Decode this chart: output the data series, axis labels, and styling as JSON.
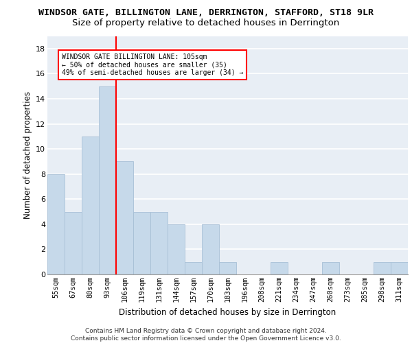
{
  "title1": "WINDSOR GATE, BILLINGTON LANE, DERRINGTON, STAFFORD, ST18 9LR",
  "title2": "Size of property relative to detached houses in Derrington",
  "xlabel": "Distribution of detached houses by size in Derrington",
  "ylabel": "Number of detached properties",
  "bin_labels": [
    "55sqm",
    "67sqm",
    "80sqm",
    "93sqm",
    "106sqm",
    "119sqm",
    "131sqm",
    "144sqm",
    "157sqm",
    "170sqm",
    "183sqm",
    "196sqm",
    "208sqm",
    "221sqm",
    "234sqm",
    "247sqm",
    "260sqm",
    "273sqm",
    "285sqm",
    "298sqm",
    "311sqm"
  ],
  "bar_heights": [
    8,
    5,
    11,
    15,
    9,
    5,
    5,
    4,
    1,
    4,
    1,
    0,
    0,
    1,
    0,
    0,
    1,
    0,
    0,
    1,
    1
  ],
  "bar_color": "#c6d9ea",
  "bar_edge_color": "#a8c0d6",
  "vline_x_idx": 3.5,
  "vline_color": "red",
  "annotation_box_text": "WINDSOR GATE BILLINGTON LANE: 105sqm\n← 50% of detached houses are smaller (35)\n49% of semi-detached houses are larger (34) →",
  "ylim": [
    0,
    19
  ],
  "yticks": [
    0,
    2,
    4,
    6,
    8,
    10,
    12,
    14,
    16,
    18
  ],
  "footer_text": "Contains HM Land Registry data © Crown copyright and database right 2024.\nContains public sector information licensed under the Open Government Licence v3.0.",
  "background_color": "#e8eef5",
  "grid_color": "#ffffff",
  "title1_fontsize": 9.5,
  "title2_fontsize": 9.5,
  "xlabel_fontsize": 8.5,
  "ylabel_fontsize": 8.5,
  "tick_fontsize": 7.5,
  "ann_fontsize": 7,
  "footer_fontsize": 6.5
}
